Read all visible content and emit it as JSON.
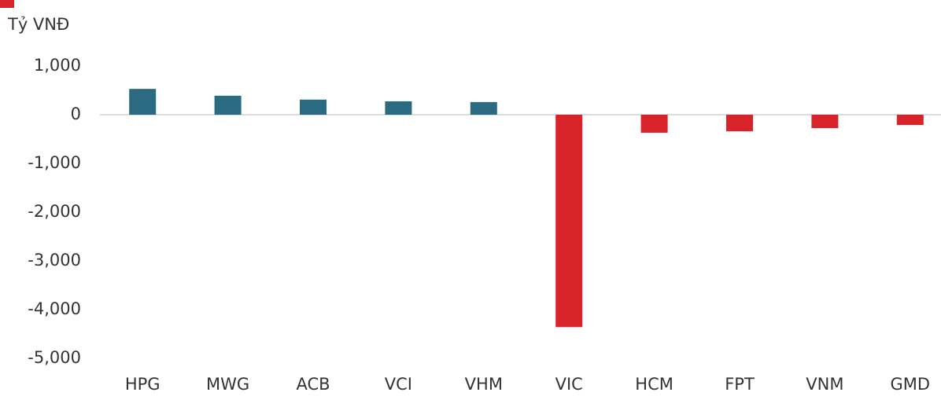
{
  "chart_data": {
    "type": "bar",
    "y_axis_label": "Tỷ VNĐ",
    "categories": [
      "HPG",
      "MWG",
      "ACB",
      "VCI",
      "VHM",
      "VIC",
      "HCM",
      "FPT",
      "VNM",
      "GMD"
    ],
    "values": [
      530,
      390,
      310,
      275,
      260,
      -4360,
      -370,
      -340,
      -275,
      -210
    ],
    "colors": [
      "#2a6b82",
      "#2a6b82",
      "#2a6b82",
      "#2a6b82",
      "#2a6b82",
      "#d9232a",
      "#d9232a",
      "#d9232a",
      "#d9232a",
      "#d9232a"
    ],
    "ylim": [
      -5000,
      1000
    ],
    "yticks": [
      {
        "value": 1000,
        "label": "1,000"
      },
      0,
      {
        "value": -1000,
        "label": "-1,000"
      },
      {
        "value": -2000,
        "label": "-2,000"
      },
      {
        "value": -3000,
        "label": "-3,000"
      },
      {
        "value": -4000,
        "label": "-4,000"
      },
      {
        "value": -5000,
        "label": "-5,000"
      }
    ],
    "grid": false
  }
}
